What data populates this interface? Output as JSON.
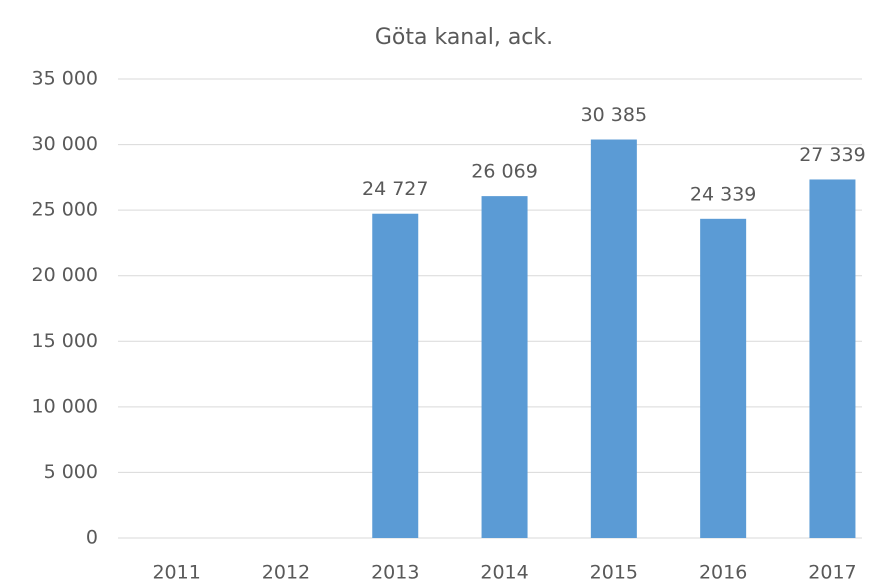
{
  "chart_data": {
    "type": "bar",
    "title": "Göta kanal, ack.",
    "categories": [
      "2011",
      "2012",
      "2013",
      "2014",
      "2015",
      "2016",
      "2017"
    ],
    "values": [
      null,
      null,
      24727,
      26069,
      30385,
      24339,
      27339
    ],
    "value_labels": [
      null,
      null,
      "24 727",
      "26 069",
      "30 385",
      "24 339",
      "27 339"
    ],
    "color": "#5b9bd5",
    "ylim": [
      0,
      35000
    ],
    "yticks": [
      0,
      {
        "value": 5000,
        "label": "5 000"
      },
      {
        "value": 10000,
        "label": "10 000"
      },
      {
        "value": 15000,
        "label": "15 000"
      },
      {
        "value": 20000,
        "label": "20 000"
      },
      {
        "value": 25000,
        "label": "25 000"
      },
      {
        "value": 30000,
        "label": "30 000"
      },
      {
        "value": 35000,
        "label": "35 000"
      }
    ],
    "grid": true
  }
}
